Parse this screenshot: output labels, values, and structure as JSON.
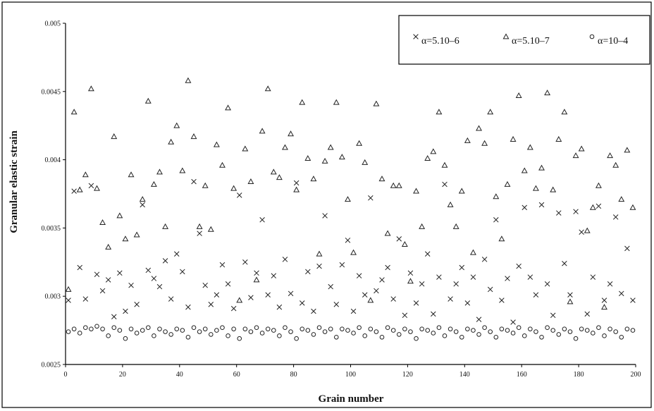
{
  "chart_data": {
    "type": "scatter",
    "title": "",
    "xlabel": "Grain number",
    "ylabel": "Granular elastic strain",
    "xlim": [
      0,
      200
    ],
    "ylim": [
      0.0025,
      0.005
    ],
    "x_ticks": [
      "0",
      "20",
      "40",
      "60",
      "80",
      "100",
      "120",
      "140",
      "160",
      "180",
      "200"
    ],
    "y_ticks": [
      "0.0025",
      "0.003",
      "0.0035",
      "0.004",
      "0.0045",
      "0.005"
    ],
    "grid": false,
    "legend_position": "top-right",
    "series": [
      {
        "name": "α=5.10–6",
        "marker": "cross",
        "x": [
          1,
          3,
          5,
          7,
          9,
          11,
          13,
          15,
          17,
          19,
          21,
          23,
          25,
          27,
          29,
          31,
          33,
          35,
          37,
          39,
          41,
          43,
          45,
          47,
          49,
          51,
          53,
          55,
          57,
          59,
          61,
          63,
          65,
          67,
          69,
          71,
          73,
          75,
          77,
          79,
          81,
          83,
          85,
          87,
          89,
          91,
          93,
          95,
          97,
          99,
          101,
          103,
          105,
          107,
          109,
          111,
          113,
          115,
          117,
          119,
          121,
          123,
          125,
          127,
          129,
          131,
          133,
          135,
          137,
          139,
          141,
          143,
          145,
          147,
          149,
          151,
          153,
          155,
          157,
          159,
          161,
          163,
          165,
          167,
          169,
          171,
          173,
          175,
          177,
          179,
          181,
          183,
          185,
          187,
          189,
          191,
          193,
          195,
          197,
          199
        ],
        "values": [
          0.00297,
          0.00377,
          0.00321,
          0.00298,
          0.00381,
          0.00316,
          0.00304,
          0.00312,
          0.00285,
          0.00317,
          0.00289,
          0.00308,
          0.00294,
          0.00367,
          0.00319,
          0.00313,
          0.00307,
          0.00326,
          0.00298,
          0.00331,
          0.00318,
          0.00292,
          0.00384,
          0.00346,
          0.00308,
          0.00294,
          0.00301,
          0.00323,
          0.00309,
          0.00291,
          0.00374,
          0.00325,
          0.00299,
          0.00317,
          0.00356,
          0.00301,
          0.00315,
          0.00292,
          0.00327,
          0.00302,
          0.00383,
          0.00295,
          0.00318,
          0.00289,
          0.00322,
          0.00359,
          0.00307,
          0.00294,
          0.00323,
          0.00341,
          0.00289,
          0.00315,
          0.00301,
          0.00372,
          0.00304,
          0.00312,
          0.00321,
          0.00298,
          0.00342,
          0.00286,
          0.00317,
          0.00295,
          0.00309,
          0.00331,
          0.00287,
          0.00314,
          0.00382,
          0.00298,
          0.00309,
          0.00321,
          0.00295,
          0.00314,
          0.00283,
          0.00327,
          0.00305,
          0.00356,
          0.00297,
          0.00313,
          0.00281,
          0.00322,
          0.00365,
          0.00314,
          0.00301,
          0.00367,
          0.00309,
          0.00286,
          0.00361,
          0.00324,
          0.00301,
          0.00362,
          0.00347,
          0.00287,
          0.00314,
          0.00366,
          0.00297,
          0.00309,
          0.00358,
          0.00302,
          0.00335,
          0.00297
        ]
      },
      {
        "name": "α=5.10–7",
        "marker": "triangle",
        "x": [
          1,
          3,
          5,
          7,
          9,
          11,
          13,
          15,
          17,
          19,
          21,
          23,
          25,
          27,
          29,
          31,
          33,
          35,
          37,
          39,
          41,
          43,
          45,
          47,
          49,
          51,
          53,
          55,
          57,
          59,
          61,
          63,
          65,
          67,
          69,
          71,
          73,
          75,
          77,
          79,
          81,
          83,
          85,
          87,
          89,
          91,
          93,
          95,
          97,
          99,
          101,
          103,
          105,
          107,
          109,
          111,
          113,
          115,
          117,
          119,
          121,
          123,
          125,
          127,
          129,
          131,
          133,
          135,
          137,
          139,
          141,
          143,
          145,
          147,
          149,
          151,
          153,
          155,
          157,
          159,
          161,
          163,
          165,
          167,
          169,
          171,
          173,
          175,
          177,
          179,
          181,
          183,
          185,
          187,
          189,
          191,
          193,
          195,
          197,
          199
        ],
        "values": [
          0.00305,
          0.00435,
          0.00378,
          0.00389,
          0.00452,
          0.00379,
          0.00354,
          0.00336,
          0.00417,
          0.00359,
          0.00342,
          0.00389,
          0.00345,
          0.00371,
          0.00443,
          0.00382,
          0.00391,
          0.00351,
          0.00413,
          0.00425,
          0.00392,
          0.00458,
          0.00417,
          0.00351,
          0.00381,
          0.00349,
          0.00411,
          0.00396,
          0.00438,
          0.00379,
          0.00297,
          0.00408,
          0.00384,
          0.00312,
          0.00421,
          0.00452,
          0.00391,
          0.00387,
          0.00409,
          0.00419,
          0.00378,
          0.00442,
          0.00401,
          0.00386,
          0.00331,
          0.00399,
          0.00409,
          0.00442,
          0.00402,
          0.00371,
          0.00332,
          0.00412,
          0.00398,
          0.00297,
          0.00441,
          0.00386,
          0.00346,
          0.00381,
          0.00381,
          0.00338,
          0.00311,
          0.00377,
          0.00351,
          0.00401,
          0.00406,
          0.00435,
          0.00396,
          0.00367,
          0.00351,
          0.00377,
          0.00414,
          0.00332,
          0.00423,
          0.00412,
          0.00435,
          0.00373,
          0.00342,
          0.00382,
          0.00415,
          0.00447,
          0.00392,
          0.00409,
          0.00379,
          0.00394,
          0.00449,
          0.00378,
          0.00415,
          0.00435,
          0.00296,
          0.00403,
          0.00408,
          0.00348,
          0.00365,
          0.00381,
          0.00292,
          0.00403,
          0.00396,
          0.00371,
          0.00407,
          0.00365
        ]
      },
      {
        "name": "α=10–4",
        "marker": "circle",
        "x": [
          1,
          3,
          5,
          7,
          9,
          11,
          13,
          15,
          17,
          19,
          21,
          23,
          25,
          27,
          29,
          31,
          33,
          35,
          37,
          39,
          41,
          43,
          45,
          47,
          49,
          51,
          53,
          55,
          57,
          59,
          61,
          63,
          65,
          67,
          69,
          71,
          73,
          75,
          77,
          79,
          81,
          83,
          85,
          87,
          89,
          91,
          93,
          95,
          97,
          99,
          101,
          103,
          105,
          107,
          109,
          111,
          113,
          115,
          117,
          119,
          121,
          123,
          125,
          127,
          129,
          131,
          133,
          135,
          137,
          139,
          141,
          143,
          145,
          147,
          149,
          151,
          153,
          155,
          157,
          159,
          161,
          163,
          165,
          167,
          169,
          171,
          173,
          175,
          177,
          179,
          181,
          183,
          185,
          187,
          189,
          191,
          193,
          195,
          197,
          199
        ],
        "values": [
          0.00274,
          0.00276,
          0.00273,
          0.00277,
          0.00276,
          0.00278,
          0.00276,
          0.00271,
          0.00277,
          0.00275,
          0.00269,
          0.00276,
          0.00273,
          0.00275,
          0.00277,
          0.00271,
          0.00276,
          0.00274,
          0.00272,
          0.00276,
          0.00275,
          0.0027,
          0.00277,
          0.00274,
          0.00276,
          0.00272,
          0.00275,
          0.00277,
          0.00271,
          0.00276,
          0.00269,
          0.00276,
          0.00274,
          0.00277,
          0.00273,
          0.00276,
          0.00275,
          0.00271,
          0.00277,
          0.00274,
          0.00269,
          0.00276,
          0.00275,
          0.00272,
          0.00277,
          0.00274,
          0.00276,
          0.0027,
          0.00276,
          0.00275,
          0.00273,
          0.00277,
          0.00271,
          0.00276,
          0.00274,
          0.0027,
          0.00277,
          0.00275,
          0.00272,
          0.00276,
          0.00274,
          0.00269,
          0.00276,
          0.00275,
          0.00273,
          0.00277,
          0.00271,
          0.00276,
          0.00274,
          0.0027,
          0.00276,
          0.00275,
          0.00272,
          0.00277,
          0.00274,
          0.0027,
          0.00276,
          0.00275,
          0.00273,
          0.00277,
          0.00271,
          0.00276,
          0.00274,
          0.0027,
          0.00277,
          0.00275,
          0.00272,
          0.00276,
          0.00274,
          0.00269,
          0.00276,
          0.00275,
          0.00273,
          0.00277,
          0.00271,
          0.00276,
          0.00274,
          0.0027,
          0.00276,
          0.00275
        ]
      }
    ]
  }
}
